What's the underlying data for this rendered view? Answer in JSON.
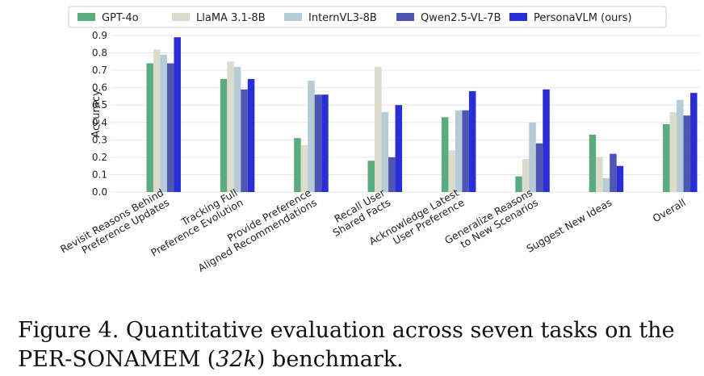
{
  "chart_data": {
    "type": "bar",
    "ylabel": "Accuracy",
    "ylim": [
      0,
      0.9
    ],
    "yticks": [
      "0.0",
      "0.1",
      "0.2",
      "0.3",
      "0.4",
      "0.5",
      "0.6",
      "0.7",
      "0.8",
      "0.9"
    ],
    "grid": true,
    "legend_placement": "top",
    "categories": [
      [
        "Revisit Reasons Behind",
        "Preference Updates"
      ],
      [
        "Tracking Full",
        "Preference Evolution"
      ],
      [
        "Provide Preference",
        "Aligned Recommendations"
      ],
      [
        "Recall User",
        "Shared Facts"
      ],
      [
        "Acknowledge Latest",
        "User Preference"
      ],
      [
        "Generalize Reasons",
        "to New Scenarios"
      ],
      [
        "Suggest New Ideas"
      ],
      [
        "Overall"
      ]
    ],
    "series": [
      {
        "name": "GPT-4o",
        "color": "#5aab7e",
        "values": [
          0.74,
          0.65,
          0.31,
          0.18,
          0.43,
          0.09,
          0.33,
          0.39
        ]
      },
      {
        "name": "LlaMA 3.1-8B",
        "color": "#dcdccc",
        "values": [
          0.82,
          0.75,
          0.27,
          0.72,
          0.24,
          0.19,
          0.2,
          0.46
        ]
      },
      {
        "name": "InternVL3-8B",
        "color": "#b5cbd6",
        "values": [
          0.79,
          0.72,
          0.64,
          0.46,
          0.47,
          0.4,
          0.08,
          0.53
        ]
      },
      {
        "name": "Qwen2.5-VL-7B",
        "color": "#4f55b3",
        "values": [
          0.74,
          0.59,
          0.56,
          0.2,
          0.47,
          0.28,
          0.22,
          0.44
        ]
      },
      {
        "name": "PersonaVLM (ours)",
        "color": "#2a2ed6",
        "values": [
          0.89,
          0.65,
          0.56,
          0.5,
          0.58,
          0.59,
          0.15,
          0.57
        ]
      }
    ]
  },
  "caption": {
    "label": "Figure 4.",
    "text_before": "Quantitative evaluation across seven tasks on the PER-SONAMEM (",
    "italic": "32k",
    "text_after": ") benchmark."
  }
}
